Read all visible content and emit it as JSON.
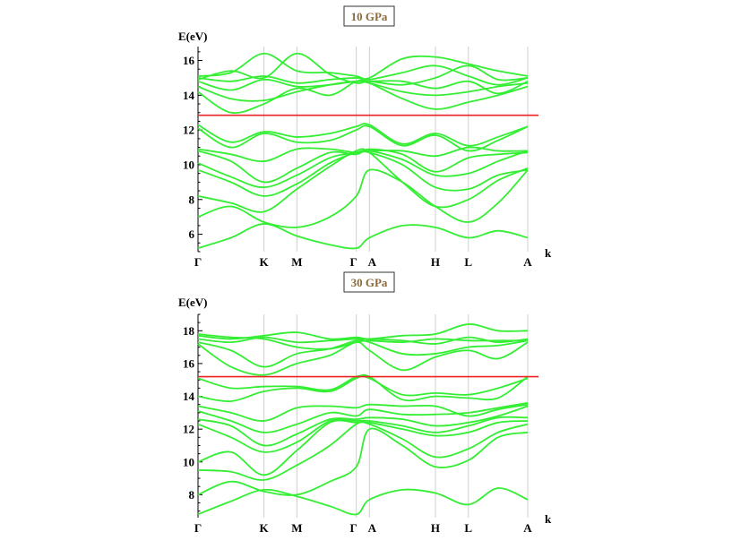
{
  "chart_data": [
    {
      "type": "line",
      "title": "10 GPa",
      "ylabel": "E(eV)",
      "xlabel": "k",
      "ylim": [
        5.0,
        16.8
      ],
      "yticks": [
        6,
        8,
        10,
        12,
        14,
        16
      ],
      "kpoints": [
        {
          "label": "Γ",
          "x": 0.0
        },
        {
          "label": "K",
          "x": 0.2
        },
        {
          "label": "M",
          "x": 0.3
        },
        {
          "label": "Γ",
          "x": 0.48
        },
        {
          "label": "A",
          "x": 0.52
        },
        {
          "label": "H",
          "x": 0.72
        },
        {
          "label": "L",
          "x": 0.82
        },
        {
          "label": "A",
          "x": 1.0
        }
      ],
      "fermi_level": 12.85,
      "band_color": "#33ee33",
      "fermi_color": "#ee2222",
      "series": [
        {
          "x": [
            0,
            0.1,
            0.2,
            0.3,
            0.4,
            0.48,
            0.52,
            0.62,
            0.72,
            0.82,
            0.91,
            1.0
          ],
          "values": [
            5.2,
            5.8,
            6.6,
            5.9,
            5.4,
            5.2,
            5.8,
            6.5,
            6.4,
            5.8,
            6.2,
            5.8
          ]
        },
        {
          "x": [
            0,
            0.1,
            0.2,
            0.3,
            0.4,
            0.48,
            0.52,
            0.62,
            0.72,
            0.82,
            0.91,
            1.0
          ],
          "values": [
            7.0,
            7.6,
            6.7,
            6.4,
            7.0,
            8.2,
            9.7,
            9.0,
            7.6,
            6.7,
            7.8,
            9.7
          ]
        },
        {
          "x": [
            0,
            0.1,
            0.2,
            0.3,
            0.4,
            0.48,
            0.52,
            0.62,
            0.72,
            0.82,
            0.91,
            1.0
          ],
          "values": [
            8.2,
            7.8,
            7.3,
            8.6,
            9.9,
            10.8,
            10.7,
            9.0,
            7.6,
            8.0,
            9.1,
            9.8
          ]
        },
        {
          "x": [
            0,
            0.1,
            0.2,
            0.3,
            0.4,
            0.48,
            0.52,
            0.62,
            0.72,
            0.82,
            0.91,
            1.0
          ],
          "values": [
            9.7,
            9.0,
            8.2,
            8.9,
            10.1,
            10.7,
            10.7,
            10.0,
            8.7,
            8.6,
            9.4,
            9.7
          ]
        },
        {
          "x": [
            0,
            0.1,
            0.2,
            0.3,
            0.4,
            0.48,
            0.52,
            0.62,
            0.72,
            0.82,
            0.91,
            1.0
          ],
          "values": [
            10.1,
            9.3,
            8.7,
            9.4,
            10.4,
            10.7,
            10.8,
            10.3,
            9.4,
            9.5,
            10.2,
            10.8
          ]
        },
        {
          "x": [
            0,
            0.1,
            0.2,
            0.3,
            0.4,
            0.48,
            0.52,
            0.62,
            0.72,
            0.82,
            0.91,
            1.0
          ],
          "values": [
            10.8,
            10.2,
            9.0,
            9.8,
            10.7,
            10.6,
            10.9,
            10.6,
            9.6,
            10.4,
            10.6,
            10.7
          ]
        },
        {
          "x": [
            0,
            0.1,
            0.2,
            0.3,
            0.4,
            0.48,
            0.52,
            0.62,
            0.72,
            0.82,
            0.91,
            1.0
          ],
          "values": [
            10.9,
            10.6,
            10.2,
            10.9,
            10.9,
            10.7,
            10.8,
            10.8,
            10.5,
            11.0,
            10.8,
            10.8
          ]
        },
        {
          "x": [
            0,
            0.1,
            0.2,
            0.3,
            0.4,
            0.48,
            0.52,
            0.62,
            0.72,
            0.82,
            0.91,
            1.0
          ],
          "values": [
            12.1,
            11.0,
            11.8,
            11.3,
            11.4,
            12.0,
            12.2,
            11.1,
            11.7,
            10.8,
            11.4,
            12.2
          ]
        },
        {
          "x": [
            0,
            0.1,
            0.2,
            0.3,
            0.4,
            0.48,
            0.52,
            0.62,
            0.72,
            0.82,
            0.91,
            1.0
          ],
          "values": [
            12.3,
            11.3,
            11.9,
            11.6,
            11.8,
            12.2,
            12.3,
            11.2,
            11.8,
            11.1,
            11.6,
            12.2
          ]
        },
        {
          "x": [
            0,
            0.1,
            0.2,
            0.3,
            0.4,
            0.48,
            0.52,
            0.62,
            0.72,
            0.82,
            0.91,
            1.0
          ],
          "values": [
            14.2,
            13.0,
            13.5,
            14.4,
            14.0,
            14.8,
            14.7,
            13.8,
            13.2,
            13.6,
            14.0,
            14.5
          ]
        },
        {
          "x": [
            0,
            0.1,
            0.2,
            0.3,
            0.4,
            0.48,
            0.52,
            0.62,
            0.72,
            0.82,
            0.91,
            1.0
          ],
          "values": [
            14.5,
            13.8,
            13.7,
            14.2,
            14.6,
            14.8,
            14.7,
            14.2,
            14.0,
            14.2,
            14.5,
            14.7
          ]
        },
        {
          "x": [
            0,
            0.1,
            0.2,
            0.3,
            0.4,
            0.48,
            0.52,
            0.62,
            0.72,
            0.82,
            0.91,
            1.0
          ],
          "values": [
            14.8,
            14.3,
            14.9,
            14.5,
            14.6,
            14.8,
            14.8,
            14.8,
            14.4,
            14.8,
            14.1,
            14.8
          ]
        },
        {
          "x": [
            0,
            0.1,
            0.2,
            0.3,
            0.4,
            0.48,
            0.52,
            0.62,
            0.72,
            0.82,
            0.91,
            1.0
          ],
          "values": [
            15.0,
            14.8,
            15.1,
            14.7,
            14.9,
            15.0,
            14.9,
            15.3,
            15.7,
            15.1,
            14.6,
            15.0
          ]
        },
        {
          "x": [
            0,
            0.1,
            0.2,
            0.3,
            0.4,
            0.48,
            0.52,
            0.62,
            0.72,
            0.82,
            0.91,
            1.0
          ],
          "values": [
            15.1,
            15.3,
            16.4,
            15.4,
            15.3,
            15.1,
            15.0,
            16.1,
            16.2,
            15.8,
            15.4,
            15.1
          ]
        },
        {
          "x": [
            0,
            0.1,
            0.2,
            0.3,
            0.4,
            0.48,
            0.52,
            0.62,
            0.72,
            0.82,
            0.91,
            1.0
          ],
          "values": [
            14.9,
            15.4,
            15.0,
            16.4,
            15.2,
            14.7,
            14.8,
            14.6,
            15.0,
            15.7,
            14.9,
            15.0
          ]
        }
      ]
    },
    {
      "type": "line",
      "title": "30 GPa",
      "ylabel": "E(eV)",
      "xlabel": "k",
      "ylim": [
        6.6,
        19.0
      ],
      "yticks": [
        8,
        10,
        12,
        14,
        16,
        18
      ],
      "kpoints": [
        {
          "label": "Γ",
          "x": 0.0
        },
        {
          "label": "K",
          "x": 0.2
        },
        {
          "label": "M",
          "x": 0.3
        },
        {
          "label": "Γ",
          "x": 0.48
        },
        {
          "label": "A",
          "x": 0.52
        },
        {
          "label": "H",
          "x": 0.72
        },
        {
          "label": "L",
          "x": 0.82
        },
        {
          "label": "A",
          "x": 1.0
        }
      ],
      "fermi_level": 15.2,
      "band_color": "#33ee33",
      "fermi_color": "#ee2222",
      "series": [
        {
          "x": [
            0,
            0.1,
            0.2,
            0.3,
            0.4,
            0.48,
            0.52,
            0.62,
            0.72,
            0.82,
            0.91,
            1.0
          ],
          "values": [
            6.8,
            7.6,
            8.3,
            7.9,
            7.3,
            6.8,
            7.7,
            8.3,
            8.1,
            7.4,
            8.4,
            7.7
          ]
        },
        {
          "x": [
            0,
            0.1,
            0.2,
            0.3,
            0.4,
            0.48,
            0.52,
            0.62,
            0.72,
            0.82,
            0.91,
            1.0
          ],
          "values": [
            8.0,
            8.8,
            8.2,
            8.0,
            8.8,
            9.7,
            12.0,
            11.0,
            9.7,
            10.1,
            11.5,
            11.8
          ]
        },
        {
          "x": [
            0,
            0.1,
            0.2,
            0.3,
            0.4,
            0.48,
            0.52,
            0.62,
            0.72,
            0.82,
            0.91,
            1.0
          ],
          "values": [
            9.5,
            9.4,
            8.9,
            9.8,
            11.0,
            12.3,
            12.3,
            11.4,
            10.3,
            10.8,
            11.8,
            12.3
          ]
        },
        {
          "x": [
            0,
            0.1,
            0.2,
            0.3,
            0.4,
            0.48,
            0.52,
            0.62,
            0.72,
            0.82,
            0.91,
            1.0
          ],
          "values": [
            10.0,
            10.6,
            9.2,
            10.7,
            12.4,
            12.4,
            12.4,
            12.0,
            11.6,
            11.8,
            12.4,
            12.5
          ]
        },
        {
          "x": [
            0,
            0.1,
            0.2,
            0.3,
            0.4,
            0.48,
            0.52,
            0.62,
            0.72,
            0.82,
            0.91,
            1.0
          ],
          "values": [
            12.3,
            11.5,
            10.6,
            11.2,
            12.5,
            12.5,
            12.5,
            12.2,
            11.8,
            12.2,
            12.7,
            12.7
          ]
        },
        {
          "x": [
            0,
            0.1,
            0.2,
            0.3,
            0.4,
            0.48,
            0.52,
            0.62,
            0.72,
            0.82,
            0.91,
            1.0
          ],
          "values": [
            12.6,
            12.2,
            11.0,
            11.7,
            12.6,
            12.6,
            12.7,
            12.6,
            12.2,
            12.4,
            12.8,
            13.4
          ]
        },
        {
          "x": [
            0,
            0.1,
            0.2,
            0.3,
            0.4,
            0.48,
            0.52,
            0.62,
            0.72,
            0.82,
            0.91,
            1.0
          ],
          "values": [
            13.1,
            12.5,
            11.8,
            12.3,
            13.0,
            12.8,
            13.2,
            12.9,
            12.9,
            13.0,
            13.3,
            13.6
          ]
        },
        {
          "x": [
            0,
            0.1,
            0.2,
            0.3,
            0.4,
            0.48,
            0.52,
            0.62,
            0.72,
            0.82,
            0.91,
            1.0
          ],
          "values": [
            13.4,
            13.0,
            12.5,
            13.3,
            13.4,
            13.3,
            13.5,
            13.4,
            13.4,
            12.8,
            13.2,
            13.5
          ]
        },
        {
          "x": [
            0,
            0.1,
            0.2,
            0.3,
            0.4,
            0.48,
            0.52,
            0.62,
            0.72,
            0.82,
            0.91,
            1.0
          ],
          "values": [
            14.0,
            13.7,
            14.3,
            14.5,
            14.3,
            15.1,
            15.2,
            13.8,
            14.0,
            13.9,
            13.9,
            15.2
          ]
        },
        {
          "x": [
            0,
            0.1,
            0.2,
            0.3,
            0.4,
            0.48,
            0.52,
            0.62,
            0.72,
            0.82,
            0.91,
            1.0
          ],
          "values": [
            15.1,
            14.5,
            14.6,
            14.6,
            14.4,
            15.2,
            15.1,
            14.1,
            14.2,
            14.1,
            14.5,
            15.1
          ]
        },
        {
          "x": [
            0,
            0.1,
            0.2,
            0.3,
            0.4,
            0.48,
            0.52,
            0.62,
            0.72,
            0.82,
            0.91,
            1.0
          ],
          "values": [
            17.2,
            15.8,
            15.3,
            16.0,
            16.5,
            17.3,
            16.8,
            15.6,
            16.4,
            16.8,
            16.3,
            17.3
          ]
        },
        {
          "x": [
            0,
            0.1,
            0.2,
            0.3,
            0.4,
            0.48,
            0.52,
            0.62,
            0.72,
            0.82,
            0.91,
            1.0
          ],
          "values": [
            17.3,
            16.8,
            15.8,
            16.6,
            16.9,
            17.4,
            17.3,
            16.6,
            16.6,
            17.0,
            17.1,
            17.4
          ]
        },
        {
          "x": [
            0,
            0.1,
            0.2,
            0.3,
            0.4,
            0.48,
            0.52,
            0.62,
            0.72,
            0.82,
            0.91,
            1.0
          ],
          "values": [
            17.5,
            17.3,
            17.6,
            17.3,
            17.4,
            17.5,
            17.5,
            17.4,
            17.2,
            17.6,
            17.3,
            17.5
          ]
        },
        {
          "x": [
            0,
            0.1,
            0.2,
            0.3,
            0.4,
            0.48,
            0.52,
            0.62,
            0.72,
            0.82,
            0.91,
            1.0
          ],
          "values": [
            17.7,
            17.5,
            17.7,
            17.9,
            17.5,
            17.6,
            17.5,
            17.7,
            17.8,
            18.4,
            18.0,
            18.0
          ]
        },
        {
          "x": [
            0,
            0.1,
            0.2,
            0.3,
            0.4,
            0.48,
            0.52,
            0.62,
            0.72,
            0.82,
            0.91,
            1.0
          ],
          "values": [
            17.8,
            17.6,
            17.5,
            17.0,
            16.9,
            17.3,
            17.4,
            17.3,
            17.5,
            17.4,
            17.4,
            17.4
          ]
        }
      ]
    }
  ]
}
